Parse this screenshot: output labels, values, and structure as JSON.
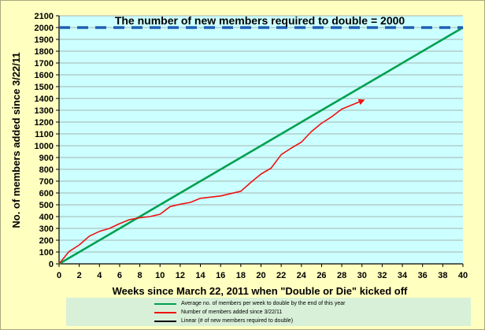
{
  "chart_data": {
    "type": "line",
    "title": "",
    "annotation": "The number of new members required to double = 2000",
    "xlabel": "Weeks since March 22, 2011 when \"Double or Die\" kicked off",
    "ylabel": "No. of  members added since 3/22/11",
    "xlim": [
      0,
      40
    ],
    "ylim": [
      0,
      2100
    ],
    "x_ticks": [
      0,
      2,
      4,
      6,
      8,
      10,
      12,
      14,
      16,
      18,
      20,
      22,
      24,
      26,
      28,
      30,
      32,
      34,
      36,
      38,
      40
    ],
    "y_ticks": [
      0,
      100,
      200,
      300,
      400,
      500,
      600,
      700,
      800,
      900,
      1000,
      1100,
      1200,
      1300,
      1400,
      1500,
      1600,
      1700,
      1800,
      1900,
      2000,
      2100
    ],
    "grid": true,
    "legend_position": "bottom",
    "series": [
      {
        "name": "Average no. of members per week to double by the end of this year",
        "color": "#00a050",
        "x": [
          0,
          40
        ],
        "y": [
          0,
          2000
        ]
      },
      {
        "name": "Number of members added since 3/22/11",
        "color": "#ee1111",
        "end_marker": "arrow",
        "x": [
          0,
          1,
          2,
          3,
          4,
          5,
          6,
          7,
          8,
          9,
          10,
          11,
          12,
          13,
          14,
          15,
          16,
          17,
          18,
          19,
          20,
          21,
          22,
          23,
          24,
          25,
          26,
          27,
          28,
          29,
          30
        ],
        "y": [
          0,
          105,
          160,
          235,
          275,
          300,
          340,
          375,
          390,
          400,
          420,
          485,
          505,
          520,
          555,
          565,
          575,
          595,
          615,
          690,
          760,
          810,
          925,
          980,
          1030,
          1120,
          1190,
          1245,
          1310,
          1345,
          1380
        ]
      },
      {
        "name": "Linear (# of new members required to double)",
        "color": "#1f5fb4",
        "style": "dashed",
        "x": [
          0,
          40
        ],
        "y": [
          2000,
          2000
        ]
      }
    ],
    "legend_swatch_colors": [
      "#00a050",
      "#ee1111",
      "#000000"
    ]
  }
}
